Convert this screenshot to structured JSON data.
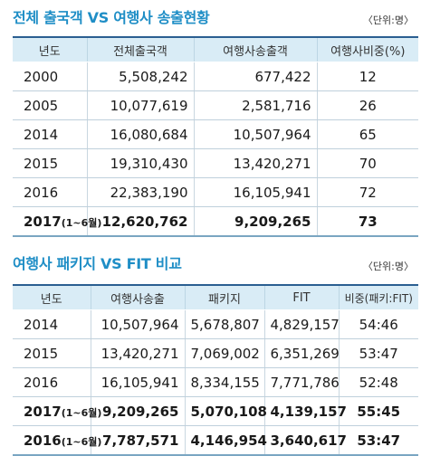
{
  "table1": {
    "title": "전체 출국객 VS 여행사 송출현황",
    "unit": "〈단위:명〉",
    "headers": [
      "년도",
      "전체출국객",
      "여행사송출객",
      "여행사비중(%)"
    ],
    "rows": [
      {
        "year": "2000",
        "suffix": "",
        "total": "5,508,242",
        "agency": "677,422",
        "share": "12"
      },
      {
        "year": "2005",
        "suffix": "",
        "total": "10,077,619",
        "agency": "2,581,716",
        "share": "26"
      },
      {
        "year": "2014",
        "suffix": "",
        "total": "16,080,684",
        "agency": "10,507,964",
        "share": "65"
      },
      {
        "year": "2015",
        "suffix": "",
        "total": "19,310,430",
        "agency": "13,420,271",
        "share": "70"
      },
      {
        "year": "2016",
        "suffix": "",
        "total": "22,383,190",
        "agency": "16,105,941",
        "share": "72"
      },
      {
        "year": "2017",
        "suffix": "(1~6월)",
        "total": "12,620,762",
        "agency": "9,209,265",
        "share": "73"
      }
    ]
  },
  "table2": {
    "title": "여행사 패키지 VS  FIT 비교",
    "unit": "〈단위:명〉",
    "headers": [
      "년도",
      "여행사송출",
      "패키지",
      "FIT",
      "비중(패키:FIT)"
    ],
    "rows": [
      {
        "year": "2014",
        "suffix": "",
        "agency": "10,507,964",
        "package": "5,678,807",
        "fit": "4,829,157",
        "ratio": "54:46"
      },
      {
        "year": "2015",
        "suffix": "",
        "agency": "13,420,271",
        "package": "7,069,002",
        "fit": "6,351,269",
        "ratio": "53:47"
      },
      {
        "year": "2016",
        "suffix": "",
        "agency": "16,105,941",
        "package": "8,334,155",
        "fit": "7,771,786",
        "ratio": "52:48"
      },
      {
        "year": "2017",
        "suffix": "(1~6월)",
        "agency": "9,209,265",
        "package": "5,070,108",
        "fit": "4,139,157",
        "ratio": "55:45"
      },
      {
        "year": "2016",
        "suffix": "(1~6월)",
        "agency": "7,787,571",
        "package": "4,146,954",
        "fit": "3,640,617",
        "ratio": "53:47"
      }
    ]
  },
  "colors": {
    "title": "#1f8ec6",
    "header_bg": "#d9ecf6",
    "top_rule": "#2b5f91"
  }
}
